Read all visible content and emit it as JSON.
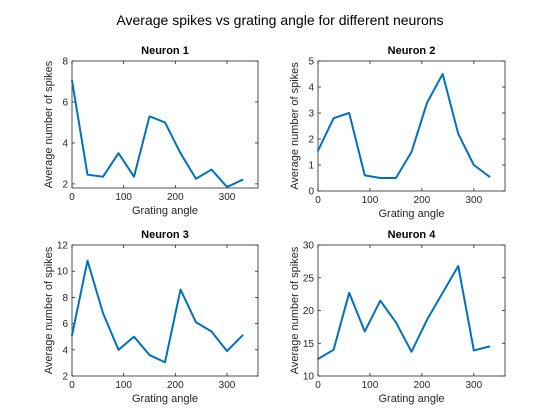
{
  "title": "Average spikes vs grating angle for different neurons",
  "colors": {
    "line": "#0072BD",
    "axes": "#262626"
  },
  "chart_data": [
    {
      "type": "line",
      "title": "Neuron 1",
      "xlabel": "Grating angle",
      "ylabel": "Average number of spikes",
      "xlim": [
        0,
        360
      ],
      "ylim": [
        1.8,
        8
      ],
      "xticks": [
        0,
        100,
        200,
        300
      ],
      "yticks": [
        2,
        4,
        6,
        8
      ],
      "x": [
        0,
        30,
        60,
        90,
        120,
        150,
        180,
        210,
        240,
        270,
        300,
        330
      ],
      "series": [
        {
          "values": [
            7.05,
            2.45,
            2.35,
            3.5,
            2.35,
            5.3,
            5.0,
            3.5,
            2.25,
            2.7,
            1.85,
            2.2
          ]
        }
      ]
    },
    {
      "type": "line",
      "title": "Neuron 2",
      "xlabel": "Grating angle",
      "ylabel": "Average number of spikes",
      "xlim": [
        0,
        360
      ],
      "ylim": [
        0,
        5
      ],
      "xticks": [
        0,
        100,
        200,
        300
      ],
      "yticks": [
        0,
        1,
        2,
        3,
        4,
        5
      ],
      "x": [
        0,
        30,
        60,
        90,
        120,
        150,
        180,
        210,
        240,
        270,
        300,
        330
      ],
      "series": [
        {
          "values": [
            1.55,
            2.8,
            3.0,
            0.6,
            0.5,
            0.5,
            1.5,
            3.4,
            4.5,
            2.2,
            1.0,
            0.55
          ]
        }
      ]
    },
    {
      "type": "line",
      "title": "Neuron 3",
      "xlabel": "Grating angle",
      "ylabel": "Average number of spikes",
      "xlim": [
        0,
        360
      ],
      "ylim": [
        2,
        12
      ],
      "xticks": [
        0,
        100,
        200,
        300
      ],
      "yticks": [
        2,
        4,
        6,
        8,
        10,
        12
      ],
      "x": [
        0,
        30,
        60,
        90,
        120,
        150,
        180,
        210,
        240,
        270,
        300,
        330
      ],
      "series": [
        {
          "values": [
            5.1,
            10.8,
            6.8,
            4.0,
            5.0,
            3.6,
            3.05,
            8.6,
            6.1,
            5.4,
            3.9,
            5.1
          ]
        }
      ]
    },
    {
      "type": "line",
      "title": "Neuron 4",
      "xlabel": "Grating angle",
      "ylabel": "Average number of spikes",
      "xlim": [
        0,
        360
      ],
      "ylim": [
        10,
        30
      ],
      "xticks": [
        0,
        100,
        200,
        300
      ],
      "yticks": [
        10,
        15,
        20,
        25,
        30
      ],
      "x": [
        0,
        30,
        60,
        90,
        120,
        150,
        180,
        210,
        240,
        270,
        300,
        330
      ],
      "series": [
        {
          "values": [
            12.6,
            14.0,
            22.7,
            16.8,
            21.5,
            18.2,
            13.7,
            18.6,
            22.7,
            26.8,
            13.9,
            14.5
          ]
        }
      ]
    }
  ]
}
